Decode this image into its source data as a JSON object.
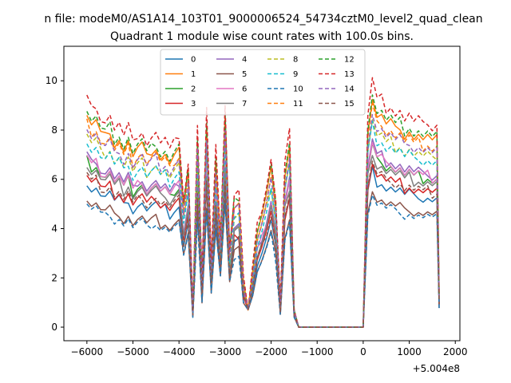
{
  "figure": {
    "suptitle": "n file: modeM0/AS1A14_103T01_9000006524_54734cztM0_level2_quad_clean",
    "offset_label": "+5.004e8"
  },
  "chart_data": {
    "type": "line",
    "title": "Quadrant 1 module wise count rates with 100.0s bins.",
    "xlabel": "",
    "ylabel": "",
    "xlim": [
      -6500,
      2100
    ],
    "ylim": [
      -0.55,
      11.4
    ],
    "x_offset": 500400000,
    "xticks": [
      -6000,
      -5000,
      -4000,
      -3000,
      -2000,
      -1000,
      0,
      1000,
      2000
    ],
    "yticks": [
      0,
      2,
      4,
      6,
      8,
      10
    ],
    "xtick_labels": [
      "−6000",
      "−5000",
      "−4000",
      "−3000",
      "−2000",
      "−1000",
      "0",
      "1000",
      "2000"
    ],
    "ytick_labels": [
      "0",
      "2",
      "4",
      "6",
      "8",
      "10"
    ],
    "grid": false,
    "legend_position": "top-center",
    "legend_columns": 4,
    "bin_seconds": 100.0,
    "x": [
      -6000,
      -5900,
      -5800,
      -5700,
      -5600,
      -5500,
      -5400,
      -5300,
      -5200,
      -5100,
      -5000,
      -4900,
      -4800,
      -4700,
      -4600,
      -4500,
      -4400,
      -4300,
      -4200,
      -4100,
      -4000,
      -3900,
      -3800,
      -3700,
      -3600,
      -3500,
      -3400,
      -3300,
      -3200,
      -3100,
      -3000,
      -2900,
      -2800,
      -2700,
      -2600,
      -2500,
      -2400,
      -2300,
      -2200,
      -2100,
      -2000,
      -1900,
      -1800,
      -1700,
      -1600,
      -1500,
      -1400,
      -1300,
      -1200,
      -1100,
      -1000,
      -900,
      -800,
      -700,
      -600,
      -500,
      -400,
      -300,
      -200,
      -100,
      0,
      100,
      200,
      300,
      400,
      500,
      600,
      700,
      800,
      900,
      1000,
      1100,
      1200,
      1300,
      1400,
      1500,
      1600,
      1650
    ],
    "series": [
      {
        "name": "0",
        "color": "#1f77b4",
        "style": "solid",
        "level": 5.9
      },
      {
        "name": "1",
        "color": "#ff7f0e",
        "style": "solid",
        "level": 8.6
      },
      {
        "name": "2",
        "color": "#2ca02c",
        "style": "solid",
        "level": 6.8
      },
      {
        "name": "3",
        "color": "#d62728",
        "style": "solid",
        "level": 6.2
      },
      {
        "name": "4",
        "color": "#9467bd",
        "style": "solid",
        "level": 7.0
      },
      {
        "name": "5",
        "color": "#8c564b",
        "style": "solid",
        "level": 5.2
      },
      {
        "name": "6",
        "color": "#e377c2",
        "style": "solid",
        "level": 6.9
      },
      {
        "name": "7",
        "color": "#7f7f7f",
        "style": "solid",
        "level": 6.6
      },
      {
        "name": "8",
        "color": "#bcbd22",
        "style": "dashed",
        "level": 7.8
      },
      {
        "name": "9",
        "color": "#17becf",
        "style": "dashed",
        "level": 7.6
      },
      {
        "name": "10",
        "color": "#1f77b4",
        "style": "dashed",
        "level": 5.0
      },
      {
        "name": "11",
        "color": "#ff7f0e",
        "style": "dashed",
        "level": 8.3
      },
      {
        "name": "12",
        "color": "#2ca02c",
        "style": "dashed",
        "level": 8.8
      },
      {
        "name": "13",
        "color": "#d62728",
        "style": "dashed",
        "level": 9.3
      },
      {
        "name": "14",
        "color": "#9467bd",
        "style": "dashed",
        "level": 8.1
      },
      {
        "name": "15",
        "color": "#8c564b",
        "style": "dashed",
        "level": 6.2
      }
    ]
  }
}
